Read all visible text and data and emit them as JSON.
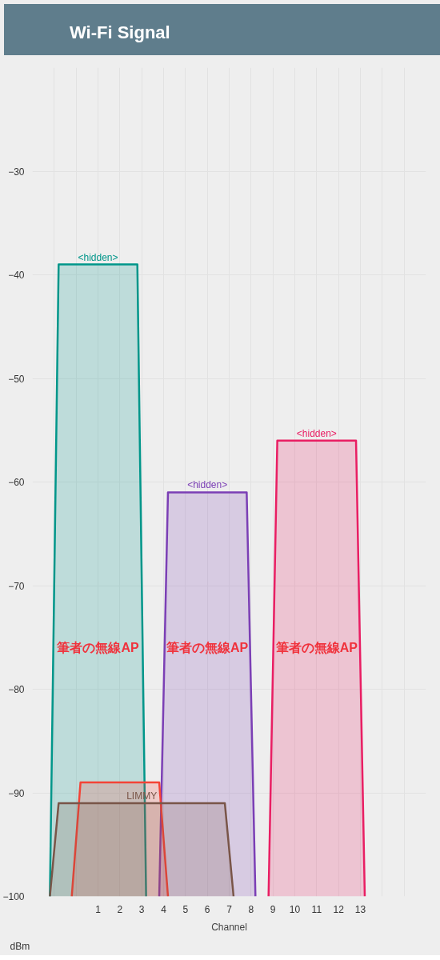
{
  "chart_data": {
    "type": "area",
    "title": "Wi-Fi Signal",
    "xlabel": "Channel",
    "ylabel": "dBm",
    "xlim": [
      -2,
      16
    ],
    "xticks": [
      1,
      2,
      3,
      4,
      5,
      6,
      7,
      8,
      9,
      10,
      11,
      12,
      13
    ],
    "ylim": [
      -100,
      -20
    ],
    "yticks": [
      -100,
      -90,
      -80,
      -70,
      -60,
      -50,
      -40,
      -30
    ],
    "grid": true,
    "series": [
      {
        "name": "<hidden>",
        "color": "#00968a",
        "x": [
          -1.2,
          -0.8,
          2.8,
          3.2
        ],
        "values": [
          -100,
          -39,
          -39,
          -100
        ]
      },
      {
        "name": "<hidden>",
        "color": "#7b3fb5",
        "x": [
          3.8,
          4.2,
          7.8,
          8.2
        ],
        "values": [
          -100,
          -61,
          -61,
          -100
        ]
      },
      {
        "name": "<hidden>",
        "color": "#e91e63",
        "x": [
          8.8,
          9.2,
          12.8,
          13.2
        ],
        "values": [
          -100,
          -56,
          -56,
          -100
        ]
      },
      {
        "color": "#f44336",
        "x": [
          -0.2,
          0.2,
          3.8,
          4.2
        ],
        "values": [
          -100,
          -89,
          -89,
          -100
        ]
      },
      {
        "name": "LIMMY",
        "color": "#795548",
        "x": [
          -1.2,
          -0.8,
          6.8,
          7.2
        ],
        "values": [
          -100,
          -91,
          -91,
          -100
        ]
      }
    ],
    "annotations": [
      "筆者の無線AP",
      "筆者の無線AP",
      "筆者の無線AP"
    ]
  }
}
